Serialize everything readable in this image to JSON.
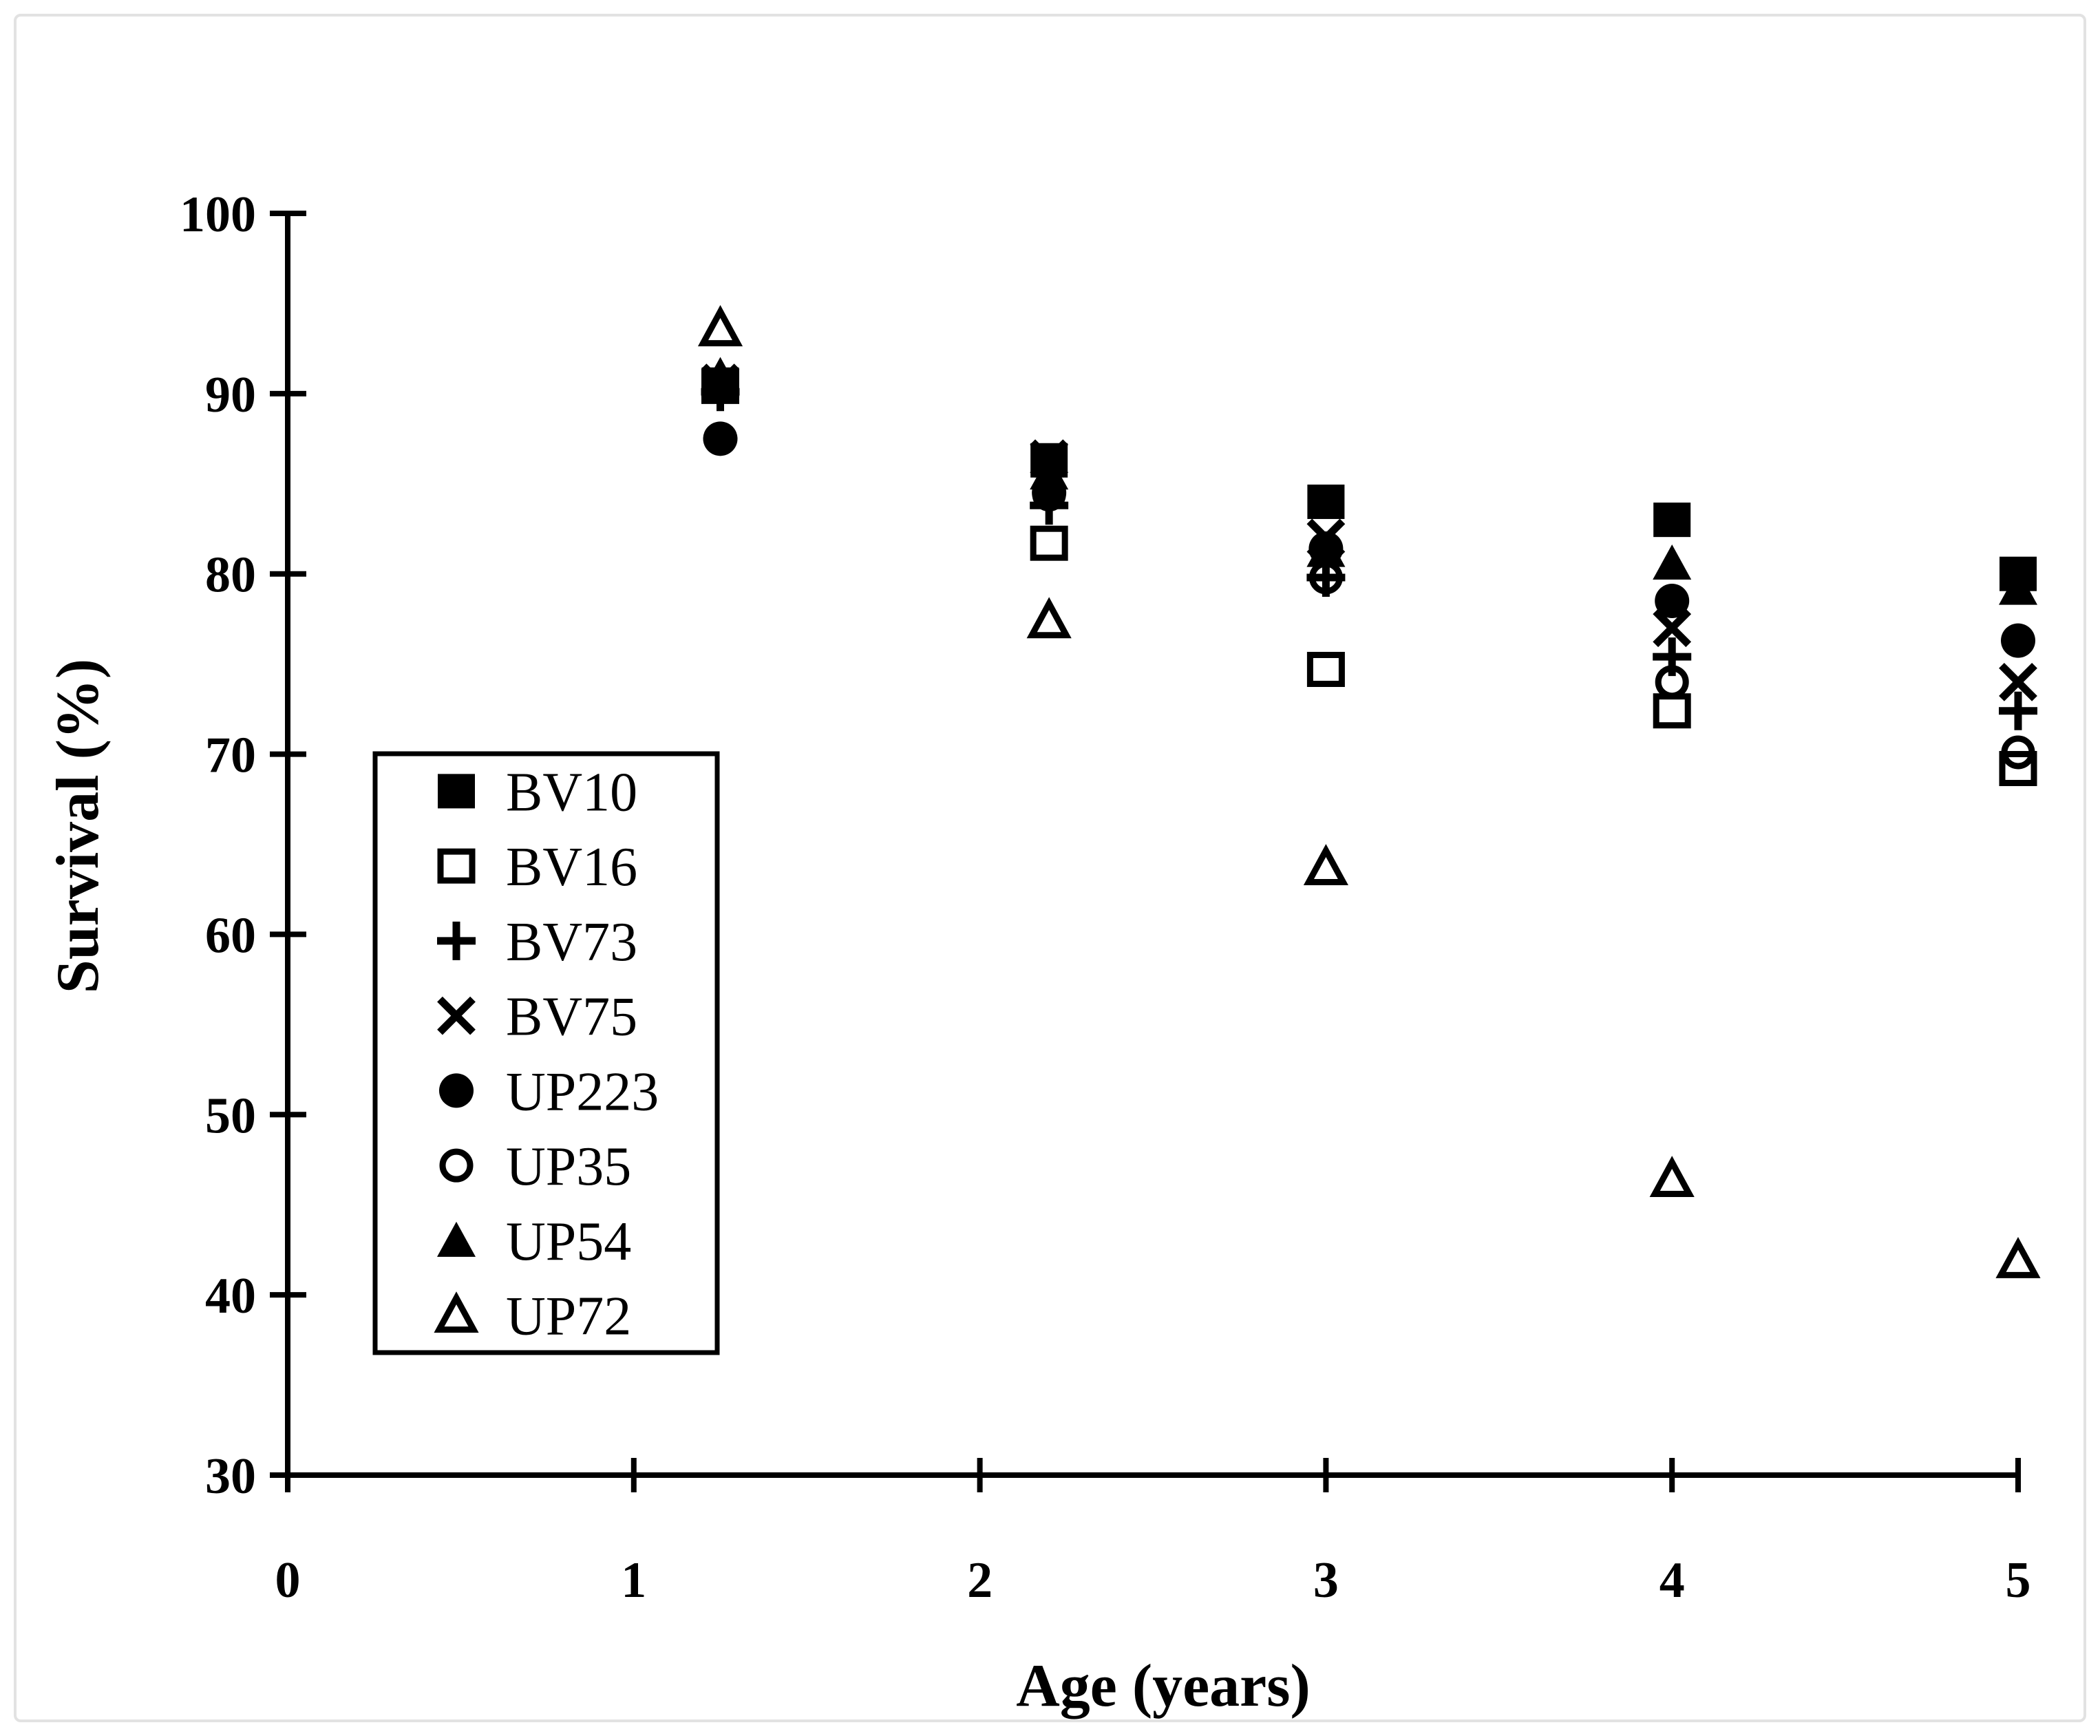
{
  "figure": {
    "background": "#ffffff",
    "frame_border_color": "#e2e2e2",
    "ink_color": "#000000"
  },
  "chart_data": {
    "type": "scatter",
    "title": "",
    "xlabel": "Age (years)",
    "ylabel": "Survival (%)",
    "xlim": [
      0,
      5
    ],
    "ylim": [
      30,
      100
    ],
    "x_ticks": [
      0,
      1,
      2,
      3,
      4,
      5
    ],
    "y_ticks": [
      30,
      40,
      50,
      60,
      70,
      80,
      90,
      100
    ],
    "grid": false,
    "legend_position": "inside-left-middle",
    "marker_color": "#000000",
    "x": [
      1.25,
      2.2,
      3,
      4,
      5
    ],
    "series": [
      {
        "name": "BV10",
        "marker": "filled-square",
        "values": [
          90.5,
          86.3,
          84.0,
          83.0,
          80.0
        ]
      },
      {
        "name": "BV16",
        "marker": "open-square",
        "values": [
          90.4,
          81.7,
          74.7,
          72.4,
          69.2
        ]
      },
      {
        "name": "BV73",
        "marker": "plus",
        "values": [
          90.1,
          83.8,
          79.8,
          75.4,
          72.4
        ]
      },
      {
        "name": "BV75",
        "marker": "x",
        "values": [
          90.6,
          86.4,
          82.0,
          77.0,
          74.0
        ]
      },
      {
        "name": "UP223",
        "marker": "filled-circle",
        "values": [
          87.5,
          84.5,
          81.4,
          78.5,
          76.3
        ]
      },
      {
        "name": "UP35",
        "marker": "open-circle",
        "values": [
          90.4,
          84.4,
          79.8,
          74.0,
          70.1
        ]
      },
      {
        "name": "UP54",
        "marker": "filled-triangle",
        "values": [
          91.0,
          85.6,
          81.3,
          80.6,
          79.2
        ]
      },
      {
        "name": "UP72",
        "marker": "open-triangle",
        "values": [
          93.6,
          77.4,
          63.7,
          46.4,
          41.9
        ]
      }
    ]
  }
}
